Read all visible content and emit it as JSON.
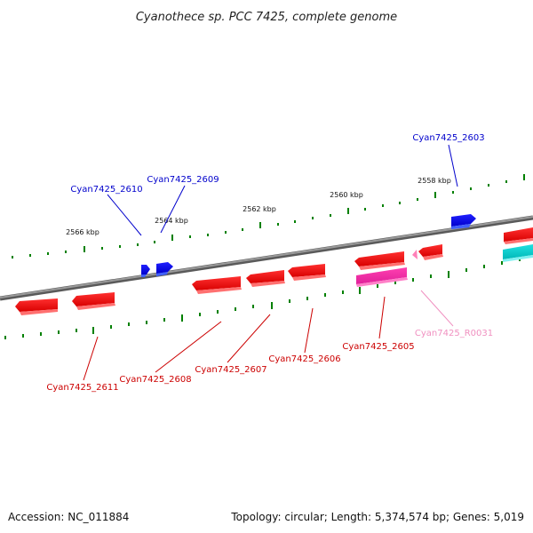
{
  "title": "Cyanothece sp. PCC 7425, complete genome",
  "footer": {
    "accession": "Accession: NC_011884",
    "summary": "Topology: circular; Length: 5,374,574 bp; Genes: 5,019"
  },
  "scale_labels": [
    "2566 kbp",
    "2564 kbp",
    "2562 kbp",
    "2560 kbp",
    "2558 kbp"
  ],
  "genes": [
    {
      "name": "Cyan7425_2603",
      "color": "#0000cc",
      "type": "cds"
    },
    {
      "name": "Cyan7425_2609",
      "color": "#0000cc",
      "type": "cds"
    },
    {
      "name": "Cyan7425_2610",
      "color": "#0000cc",
      "type": "cds"
    },
    {
      "name": "Cyan7425_2611",
      "color": "#cc0000",
      "type": "cds"
    },
    {
      "name": "Cyan7425_2608",
      "color": "#cc0000",
      "type": "cds"
    },
    {
      "name": "Cyan7425_2607",
      "color": "#cc0000",
      "type": "cds"
    },
    {
      "name": "Cyan7425_2606",
      "color": "#cc0000",
      "type": "cds"
    },
    {
      "name": "Cyan7425_2605",
      "color": "#cc0000",
      "type": "cds"
    },
    {
      "name": "Cyan7425_R0031",
      "color": "#f090c0",
      "type": "rna"
    }
  ],
  "colors": {
    "forward_strand": "#0000ee",
    "reverse_strand": "#ee0000",
    "rna": "#ff66aa",
    "other": "#00cccc",
    "backbone": "#808080",
    "ticks": "#008000"
  }
}
